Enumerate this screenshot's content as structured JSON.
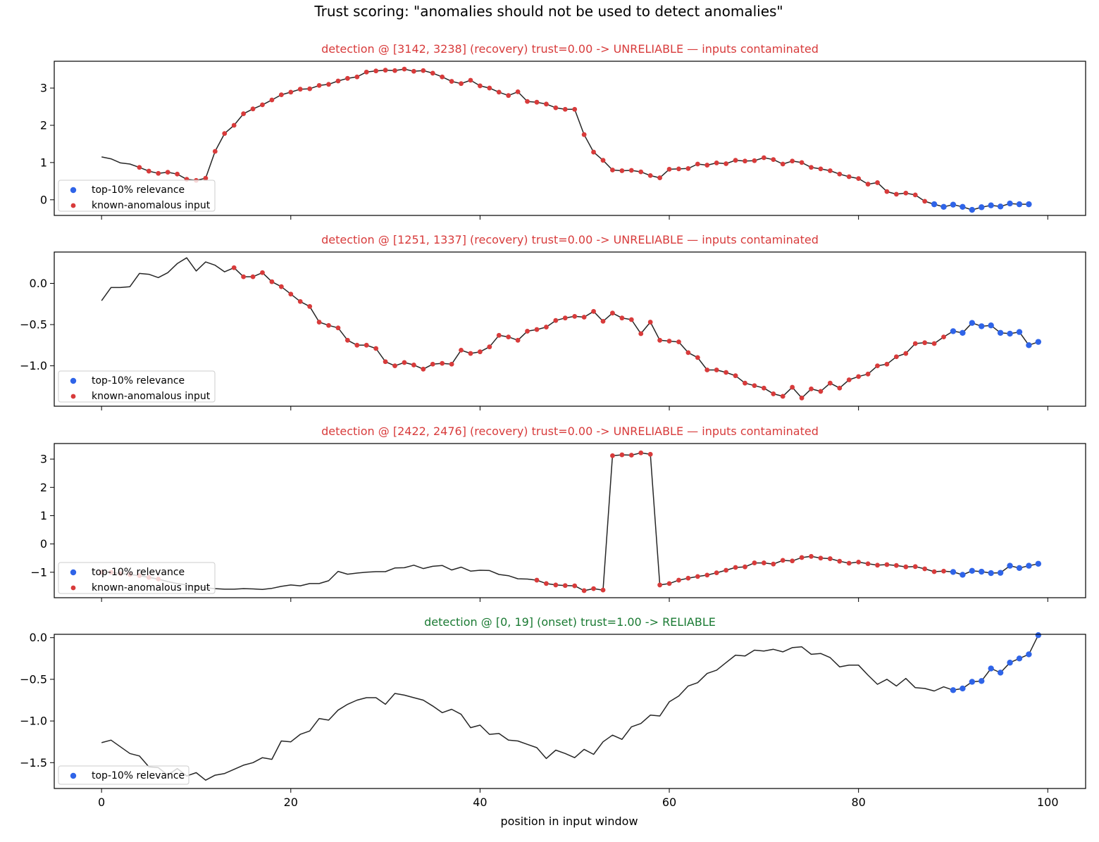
{
  "figure": {
    "title": "Trust scoring: \"anomalies should not be used to detect anomalies\"",
    "xlabel": "position in input window",
    "xticks": [
      0,
      20,
      40,
      60,
      80,
      100
    ],
    "xlim": [
      -5,
      104
    ]
  },
  "legend": {
    "relevance_label": "top-10% relevance",
    "anomalous_label": "known-anomalous input"
  },
  "colors": {
    "line": "#262626",
    "relevance": "#2f64e8",
    "anomalous": "#d83b3b",
    "title_unreliable": "#d83b3b",
    "title_reliable": "#1a7a33",
    "frame": "#000000"
  },
  "chart_data": [
    {
      "type": "line",
      "title": "detection @ [3142, 3238] (recovery)  trust=0.00  -> UNRELIABLE — inputs contaminated",
      "status": "unreliable",
      "ylim": [
        -0.42,
        3.72
      ],
      "yticks": [
        0,
        1,
        2,
        3
      ],
      "ytick_labels": [
        "0",
        "1",
        "2",
        "3"
      ],
      "legend": [
        "relevance",
        "anomalous"
      ],
      "relevance_from": 88,
      "anomalous_from": 4,
      "y": [
        1.15,
        1.1,
        0.99,
        0.96,
        0.87,
        0.77,
        0.71,
        0.74,
        0.69,
        0.55,
        0.52,
        0.58,
        1.3,
        1.78,
        2.0,
        2.31,
        2.44,
        2.55,
        2.68,
        2.82,
        2.89,
        2.97,
        2.98,
        3.07,
        3.1,
        3.19,
        3.26,
        3.3,
        3.43,
        3.46,
        3.48,
        3.47,
        3.51,
        3.45,
        3.47,
        3.4,
        3.3,
        3.18,
        3.12,
        3.21,
        3.06,
        3.0,
        2.89,
        2.8,
        2.9,
        2.64,
        2.62,
        2.57,
        2.47,
        2.43,
        2.43,
        1.75,
        1.28,
        1.06,
        0.8,
        0.78,
        0.79,
        0.75,
        0.65,
        0.59,
        0.82,
        0.83,
        0.84,
        0.96,
        0.93,
        0.99,
        0.97,
        1.06,
        1.04,
        1.05,
        1.13,
        1.08,
        0.96,
        1.04,
        1.0,
        0.87,
        0.83,
        0.78,
        0.69,
        0.62,
        0.57,
        0.42,
        0.46,
        0.22,
        0.15,
        0.18,
        0.13,
        -0.04,
        -0.12,
        -0.19,
        -0.13,
        -0.19,
        -0.27,
        -0.2,
        -0.15,
        -0.18,
        -0.1,
        -0.12,
        -0.12
      ]
    },
    {
      "type": "line",
      "title": "detection @ [1251, 1337] (recovery)  trust=0.00  -> UNRELIABLE — inputs contaminated",
      "status": "unreliable",
      "ylim": [
        -1.49,
        0.38
      ],
      "yticks": [
        0,
        -0.5,
        -1
      ],
      "ytick_labels": [
        "0.0",
        "−0.5",
        "−1.0"
      ],
      "legend": [
        "relevance",
        "anomalous"
      ],
      "relevance_from": 90,
      "anomalous_from": 14,
      "y": [
        -0.21,
        -0.05,
        -0.05,
        -0.04,
        0.12,
        0.11,
        0.07,
        0.13,
        0.24,
        0.31,
        0.15,
        0.26,
        0.22,
        0.14,
        0.19,
        0.08,
        0.08,
        0.13,
        0.02,
        -0.04,
        -0.13,
        -0.22,
        -0.28,
        -0.47,
        -0.51,
        -0.54,
        -0.69,
        -0.75,
        -0.75,
        -0.79,
        -0.95,
        -1.0,
        -0.96,
        -0.99,
        -1.04,
        -0.98,
        -0.97,
        -0.98,
        -0.81,
        -0.85,
        -0.83,
        -0.77,
        -0.63,
        -0.65,
        -0.69,
        -0.58,
        -0.56,
        -0.53,
        -0.45,
        -0.42,
        -0.4,
        -0.41,
        -0.34,
        -0.46,
        -0.36,
        -0.42,
        -0.44,
        -0.61,
        -0.47,
        -0.69,
        -0.7,
        -0.71,
        -0.84,
        -0.9,
        -1.05,
        -1.05,
        -1.08,
        -1.12,
        -1.21,
        -1.24,
        -1.27,
        -1.34,
        -1.37,
        -1.26,
        -1.39,
        -1.28,
        -1.31,
        -1.21,
        -1.27,
        -1.17,
        -1.13,
        -1.1,
        -1.0,
        -0.98,
        -0.89,
        -0.85,
        -0.73,
        -0.72,
        -0.73,
        -0.65,
        -0.58,
        -0.6,
        -0.48,
        -0.52,
        -0.51,
        -0.6,
        -0.61,
        -0.59,
        -0.75,
        -0.71
      ]
    },
    {
      "type": "line",
      "title": "detection @ [2422, 2476] (recovery)  trust=0.00  -> UNRELIABLE — inputs contaminated",
      "status": "unreliable",
      "ylim": [
        -1.9,
        3.55
      ],
      "yticks": [
        3,
        2,
        1,
        0,
        -1
      ],
      "ytick_labels": [
        "3",
        "2",
        "1",
        "0",
        "−1"
      ],
      "legend": [
        "relevance",
        "anomalous"
      ],
      "relevance_from": 90,
      "anomalous_ranges": [
        [
          0,
          6
        ],
        [
          46,
          53
        ],
        [
          54,
          58
        ],
        [
          59,
          89
        ]
      ],
      "y": [
        -1.0,
        -1.0,
        -1.05,
        -1.08,
        -1.12,
        -1.18,
        -1.24,
        -1.33,
        -1.4,
        -1.45,
        -1.5,
        -1.55,
        -1.58,
        -1.6,
        -1.6,
        -1.58,
        -1.59,
        -1.61,
        -1.57,
        -1.5,
        -1.45,
        -1.48,
        -1.4,
        -1.4,
        -1.3,
        -0.97,
        -1.07,
        -1.03,
        -1.0,
        -0.98,
        -0.98,
        -0.85,
        -0.84,
        -0.75,
        -0.87,
        -0.79,
        -0.76,
        -0.92,
        -0.82,
        -0.96,
        -0.93,
        -0.94,
        -1.08,
        -1.12,
        -1.23,
        -1.24,
        -1.28,
        -1.4,
        -1.45,
        -1.47,
        -1.48,
        -1.65,
        -1.58,
        -1.63,
        3.12,
        3.15,
        3.14,
        3.22,
        3.17,
        -1.45,
        -1.4,
        -1.28,
        -1.21,
        -1.15,
        -1.1,
        -1.02,
        -0.93,
        -0.83,
        -0.81,
        -0.67,
        -0.67,
        -0.71,
        -0.58,
        -0.6,
        -0.48,
        -0.44,
        -0.5,
        -0.52,
        -0.61,
        -0.68,
        -0.64,
        -0.7,
        -0.75,
        -0.73,
        -0.76,
        -0.81,
        -0.8,
        -0.88,
        -0.98,
        -0.96,
        -0.99,
        -1.09,
        -0.95,
        -0.98,
        -1.03,
        -1.02,
        -0.77,
        -0.85,
        -0.77,
        -0.7
      ]
    },
    {
      "type": "line",
      "title": "detection @ [0, 19] (onset)  trust=1.00  -> RELIABLE",
      "status": "reliable",
      "ylim": [
        -1.81,
        0.04
      ],
      "yticks": [
        0,
        -0.5,
        -1,
        -1.5
      ],
      "ytick_labels": [
        "0.0",
        "−0.5",
        "−1.0",
        "−1.5"
      ],
      "legend": [
        "relevance"
      ],
      "relevance_from": 90,
      "y": [
        -1.26,
        -1.23,
        -1.31,
        -1.39,
        -1.42,
        -1.55,
        -1.56,
        -1.65,
        -1.57,
        -1.66,
        -1.62,
        -1.71,
        -1.65,
        -1.63,
        -1.58,
        -1.53,
        -1.5,
        -1.44,
        -1.46,
        -1.24,
        -1.25,
        -1.16,
        -1.12,
        -0.97,
        -0.99,
        -0.87,
        -0.8,
        -0.75,
        -0.72,
        -0.72,
        -0.8,
        -0.67,
        -0.69,
        -0.72,
        -0.75,
        -0.82,
        -0.9,
        -0.86,
        -0.92,
        -1.08,
        -1.05,
        -1.16,
        -1.15,
        -1.23,
        -1.24,
        -1.28,
        -1.32,
        -1.45,
        -1.35,
        -1.39,
        -1.44,
        -1.34,
        -1.4,
        -1.25,
        -1.17,
        -1.22,
        -1.07,
        -1.03,
        -0.93,
        -0.94,
        -0.77,
        -0.7,
        -0.58,
        -0.54,
        -0.43,
        -0.39,
        -0.3,
        -0.21,
        -0.22,
        -0.15,
        -0.16,
        -0.14,
        -0.17,
        -0.12,
        -0.11,
        -0.2,
        -0.19,
        -0.24,
        -0.35,
        -0.33,
        -0.33,
        -0.45,
        -0.56,
        -0.5,
        -0.58,
        -0.49,
        -0.6,
        -0.61,
        -0.64,
        -0.59,
        -0.63,
        -0.61,
        -0.53,
        -0.52,
        -0.37,
        -0.42,
        -0.3,
        -0.25,
        -0.2,
        0.03
      ]
    }
  ]
}
